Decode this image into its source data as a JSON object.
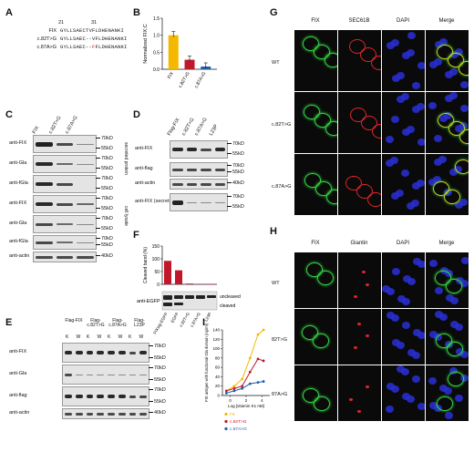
{
  "panels": {
    "A": "A",
    "B": "B",
    "C": "C",
    "D": "D",
    "E": "E",
    "F": "F",
    "G": "G",
    "H": "H",
    "I": "I"
  },
  "panelA": {
    "num21": "21",
    "num31": "31",
    "rows": [
      {
        "label": "FIX",
        "seq": "GYLLSAECTVFLDHENANKI",
        "highlight": ""
      },
      {
        "label": "c.82T>G",
        "seq": "GYLLSAEC--VFLDHENANKI",
        "highlight": ""
      },
      {
        "label": "c.87A>G",
        "seq": "GYLLSAEC--",
        "highlight": "F",
        "rest": "FLDHENANKI"
      }
    ]
  },
  "chart_data": {
    "type": "bar",
    "categories": [
      "FIX",
      "c.82T>G",
      "c.87A>G"
    ],
    "values": [
      1.0,
      0.28,
      0.08
    ],
    "ylabel": "Normalized FIX:C",
    "ylim": [
      0,
      1.5
    ],
    "yticks": [
      "0.0",
      "0.5",
      "1.0",
      "1.5"
    ],
    "colors": [
      "#f5b800",
      "#c0172b",
      "#1f5fa8"
    ]
  },
  "panelC": {
    "lanes": [
      "FIX",
      "c.82T>G",
      "c.87A>G"
    ],
    "rows": [
      "anti-FIX",
      "anti-Gla",
      "anti-fGla",
      "anti-FIX",
      "anti-Gla",
      "anti-fGla",
      "anti-actin"
    ],
    "markers": [
      "70kD",
      "55kD",
      "70kD",
      "55kD",
      "70kD",
      "55kD",
      "70kD",
      "55kD",
      "70kD",
      "55kD",
      "70kD",
      "55kD",
      "40kD"
    ],
    "side1": "secreted protein",
    "side2": "cell lysate"
  },
  "panelD": {
    "lanes": [
      "Flag-FIX",
      "c.82T>G",
      "c.87A>G",
      "L23P"
    ],
    "rows": [
      "anti-FIX",
      "anti-flag",
      "anti-actin",
      "anti-FIX (secreted)"
    ],
    "markers": [
      "70kD",
      "55kD",
      "70kD",
      "55kD",
      "40kD",
      "70kD",
      "55kD"
    ]
  },
  "panelE": {
    "groups": [
      "Flag-FIX",
      "Flag-c.82T>G",
      "Flag-c.87A>G",
      "Flag-L23P"
    ],
    "kw": [
      "K",
      "W",
      "K",
      "W",
      "K",
      "W",
      "K",
      "W"
    ],
    "rows": [
      "anti-FIX",
      "anti-Gla",
      "anti-flag",
      "anti-actin"
    ],
    "markers": [
      "70kD",
      "55kD",
      "70kD",
      "55kD",
      "70kD",
      "55kD",
      "40kD"
    ]
  },
  "panelF": {
    "chart": {
      "type": "bar",
      "categories": [
        "FIXsig-EGFP",
        "EGFP",
        "c.82T>G",
        "c.87A>G",
        "L23P"
      ],
      "values": [
        92,
        55,
        3,
        1,
        0
      ],
      "ylabel": "Cleaved band (%)",
      "ylim": [
        0,
        150
      ],
      "yticks": [
        "0",
        "50",
        "100",
        "150"
      ],
      "colors": [
        "#c0172b",
        "#c0172b",
        "#c0172b",
        "#c0172b",
        "#c0172b"
      ]
    },
    "blotlabel": "anti-EGFP",
    "uncleaved": "uncleaved",
    "cleaved": "cleaved"
  },
  "panelG": {
    "cols": [
      "FIX",
      "SEC61B",
      "DAPI",
      "Merge"
    ],
    "rows": [
      "WT",
      "c.82T>G",
      "c.87A>G"
    ]
  },
  "panelH": {
    "cols": [
      "FIX",
      "Giantin",
      "DAPI",
      "Merge"
    ],
    "rows": [
      "WT",
      "82T>G",
      "87A>G"
    ]
  },
  "panelI": {
    "type": "line",
    "ylabel": "FIX antigen with functional Gla domain (ng/ml)",
    "xlabel": "Log [vitamin K1 nM]",
    "yticks": [
      "0",
      "20",
      "40",
      "60",
      "80",
      "100",
      "120",
      "140"
    ],
    "xticks": [
      "0",
      "2",
      "4"
    ],
    "xlim": [
      -1,
      5
    ],
    "ylim": [
      0,
      140
    ],
    "series": [
      {
        "name": "F9",
        "color": "#f5b800",
        "x": [
          -0.5,
          0.5,
          1.5,
          2.5,
          3.5,
          4.2
        ],
        "y": [
          10,
          20,
          35,
          80,
          130,
          140
        ]
      },
      {
        "name": "c.82T>G",
        "color": "#c0172b",
        "x": [
          -0.5,
          0.5,
          1.5,
          2.5,
          3.5,
          4.2
        ],
        "y": [
          10,
          15,
          20,
          50,
          78,
          74
        ]
      },
      {
        "name": "c.87A>G",
        "color": "#1f5fa8",
        "x": [
          -0.5,
          0.5,
          1.5,
          2.5,
          3.5,
          4.2
        ],
        "y": [
          5,
          10,
          15,
          25,
          28,
          30
        ]
      }
    ]
  }
}
